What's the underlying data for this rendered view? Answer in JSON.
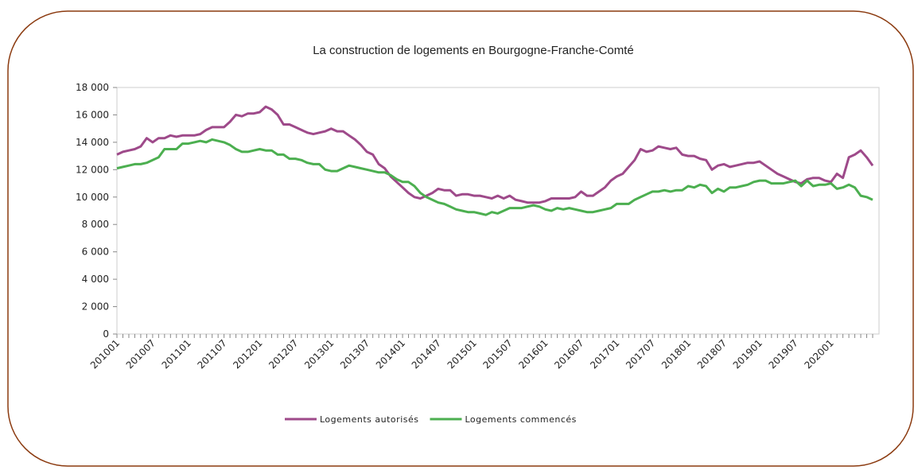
{
  "chart_data": {
    "type": "line",
    "title": "La construction de logements en Bourgogne-Franche-Comté",
    "categories": [
      "201001",
      null,
      null,
      null,
      null,
      null,
      "201007",
      null,
      null,
      null,
      null,
      null,
      "201101",
      null,
      null,
      null,
      null,
      null,
      "201107",
      null,
      null,
      null,
      null,
      null,
      "201201",
      null,
      null,
      null,
      null,
      null,
      "201207",
      null,
      null,
      null,
      null,
      null,
      "201301",
      null,
      null,
      null,
      null,
      null,
      "201307",
      null,
      null,
      null,
      null,
      null,
      "201401",
      null,
      null,
      null,
      null,
      null,
      "201407",
      null,
      null,
      null,
      null,
      null,
      "201501",
      null,
      null,
      null,
      null,
      null,
      "201507",
      null,
      null,
      null,
      null,
      null,
      "201601",
      null,
      null,
      null,
      null,
      null,
      "201607",
      null,
      null,
      null,
      null,
      null,
      "201701",
      null,
      null,
      null,
      null,
      null,
      "201707",
      null,
      null,
      null,
      null,
      null,
      "201801",
      null,
      null,
      null,
      null,
      null,
      "201807",
      null,
      null,
      null,
      null,
      null,
      "201901",
      null,
      null,
      null,
      null,
      null,
      "201907",
      null,
      null,
      null,
      null,
      null,
      "202001",
      null,
      null,
      null,
      null,
      null,
      null,
      null
    ],
    "series": [
      {
        "name": "Logements autorisés",
        "color": "#9e4a8a",
        "values": [
          13100,
          13300,
          13400,
          13500,
          13700,
          14300,
          14000,
          14300,
          14300,
          14500,
          14400,
          14500,
          14500,
          14500,
          14600,
          14900,
          15100,
          15100,
          15100,
          15500,
          16000,
          15900,
          16100,
          16100,
          16200,
          16600,
          16400,
          16000,
          15300,
          15300,
          15100,
          14900,
          14700,
          14600,
          14700,
          14800,
          15000,
          14800,
          14800,
          14500,
          14200,
          13800,
          13300,
          13100,
          12400,
          12100,
          11500,
          11100,
          10700,
          10300,
          10000,
          9900,
          10100,
          10300,
          10600,
          10500,
          10500,
          10100,
          10200,
          10200,
          10100,
          10100,
          10000,
          9900,
          10100,
          9900,
          10100,
          9800,
          9700,
          9600,
          9600,
          9600,
          9700,
          9900,
          9900,
          9900,
          9900,
          10000,
          10400,
          10100,
          10100,
          10400,
          10700,
          11200,
          11500,
          11700,
          12200,
          12700,
          13500,
          13300,
          13400,
          13700,
          13600,
          13500,
          13600,
          13100,
          13000,
          13000,
          12800,
          12700,
          12000,
          12300,
          12400,
          12200,
          12300,
          12400,
          12500,
          12500,
          12600,
          12300,
          12000,
          11700,
          11500,
          11300,
          11100,
          11000,
          11300,
          11400,
          11400,
          11200,
          11100,
          11700,
          11400,
          12900,
          13100,
          13400,
          12900,
          12300
        ]
      },
      {
        "name": "Logements commencés",
        "color": "#4caf50",
        "values": [
          12100,
          12200,
          12300,
          12400,
          12400,
          12500,
          12700,
          12900,
          13500,
          13500,
          13500,
          13900,
          13900,
          14000,
          14100,
          14000,
          14200,
          14100,
          14000,
          13800,
          13500,
          13300,
          13300,
          13400,
          13500,
          13400,
          13400,
          13100,
          13100,
          12800,
          12800,
          12700,
          12500,
          12400,
          12400,
          12000,
          11900,
          11900,
          12100,
          12300,
          12200,
          12100,
          12000,
          11900,
          11800,
          11800,
          11600,
          11300,
          11100,
          11100,
          10800,
          10300,
          10000,
          9800,
          9600,
          9500,
          9300,
          9100,
          9000,
          8900,
          8900,
          8800,
          8700,
          8900,
          8800,
          9000,
          9200,
          9200,
          9200,
          9300,
          9400,
          9300,
          9100,
          9000,
          9200,
          9100,
          9200,
          9100,
          9000,
          8900,
          8900,
          9000,
          9100,
          9200,
          9500,
          9500,
          9500,
          9800,
          10000,
          10200,
          10400,
          10400,
          10500,
          10400,
          10500,
          10500,
          10800,
          10700,
          10900,
          10800,
          10300,
          10600,
          10400,
          10700,
          10700,
          10800,
          10900,
          11100,
          11200,
          11200,
          11000,
          11000,
          11000,
          11100,
          11200,
          10800,
          11200,
          10800,
          10900,
          10900,
          11000,
          10600,
          10700,
          10900,
          10700,
          10100,
          10000,
          9800
        ]
      }
    ],
    "ylim": [
      0,
      18000
    ],
    "yticks": [
      0,
      {
        "value": 2000,
        "label": "2 000"
      },
      {
        "value": 4000,
        "label": "4 000"
      },
      {
        "value": 6000,
        "label": "6 000"
      },
      {
        "value": 8000,
        "label": "8 000"
      },
      {
        "value": 10000,
        "label": "10 000"
      },
      {
        "value": 12000,
        "label": "12 000"
      },
      {
        "value": 14000,
        "label": "14 000"
      },
      {
        "value": 16000,
        "label": "16 000"
      },
      {
        "value": 18000,
        "label": "18 000"
      }
    ],
    "grid": false,
    "legend": "bottom"
  }
}
